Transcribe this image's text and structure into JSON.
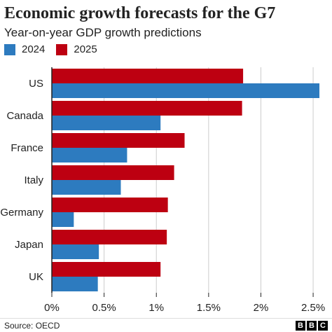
{
  "title": "Economic growth forecasts for the G7",
  "subtitle": "Year-on-year GDP growth predictions",
  "source": "Source: OECD",
  "logo": {
    "letters": [
      "B",
      "B",
      "C"
    ]
  },
  "colors": {
    "series_2024": "#2d7bbf",
    "series_2025": "#bd0011",
    "grid": "#cccccc",
    "axis": "#222222",
    "text": "#222222"
  },
  "chart_data": {
    "type": "bar",
    "orientation": "horizontal",
    "categories": [
      "US",
      "Canada",
      "France",
      "Italy",
      "Germany",
      "Japan",
      "UK"
    ],
    "series": [
      {
        "name": "2025",
        "values": [
          1.83,
          1.82,
          1.27,
          1.17,
          1.11,
          1.1,
          1.04
        ]
      },
      {
        "name": "2024",
        "values": [
          2.56,
          1.04,
          0.72,
          0.66,
          0.21,
          0.45,
          0.44
        ]
      }
    ],
    "xlim": [
      0,
      2.6
    ],
    "xticks": [
      0,
      0.5,
      1,
      1.5,
      2,
      2.5
    ],
    "xtick_labels": [
      "0%",
      "0.5%",
      "1%",
      "1.5%",
      "2%",
      "2.5%"
    ],
    "grid": true,
    "legend_position": "top-left"
  }
}
